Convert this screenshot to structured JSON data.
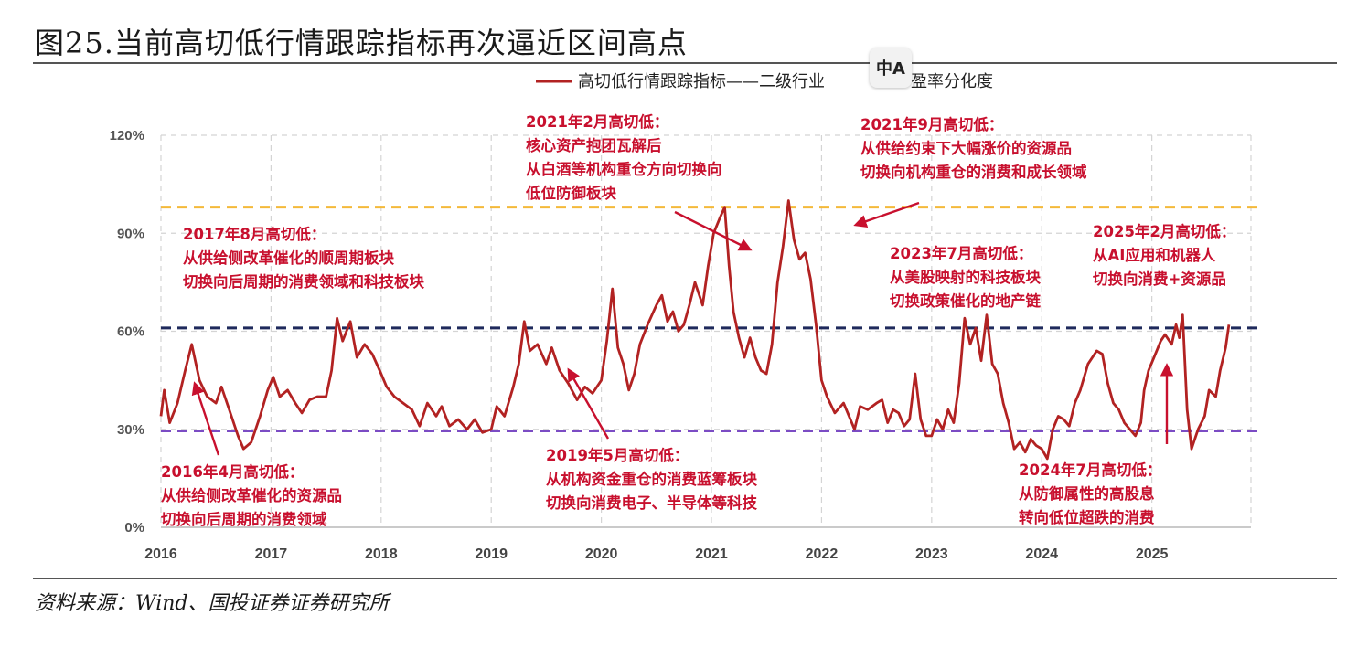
{
  "figure": {
    "title": "图25.当前高切低行情跟踪指标再次逼近区间高点",
    "source": "资料来源：Wind、国投证券证券研究所",
    "badge_icon": "translate-icon"
  },
  "colors": {
    "series": "#b22222",
    "annotation": "#c8102e",
    "upper_band": "#f4b93a",
    "middle_band": "#1f2a5c",
    "lower_band": "#7b4cc4",
    "grid": "#d4d4d4"
  },
  "chart_data": {
    "type": "line",
    "legend": "高切低行情跟踪指标——二级行业",
    "legend_tail": "盈率分化度",
    "ylim": [
      0,
      1.2
    ],
    "yticks": [
      "0%",
      "30%",
      "60%",
      "90%",
      "120%"
    ],
    "xticks": [
      "2016",
      "2017",
      "2018",
      "2019",
      "2020",
      "2021",
      "2022",
      "2023",
      "2024",
      "2025"
    ],
    "grid": true,
    "reference_lines": [
      {
        "value": 0.98,
        "style": "dashed",
        "color": "upper"
      },
      {
        "value": 0.61,
        "style": "dashed",
        "color": "middle"
      },
      {
        "value": 0.295,
        "style": "dashed",
        "color": "lower"
      }
    ],
    "series": [
      {
        "points": [
          [
            2016.0,
            0.34
          ],
          [
            2016.03,
            0.42
          ],
          [
            2016.08,
            0.32
          ],
          [
            2016.15,
            0.38
          ],
          [
            2016.22,
            0.48
          ],
          [
            2016.28,
            0.56
          ],
          [
            2016.35,
            0.45
          ],
          [
            2016.42,
            0.4
          ],
          [
            2016.5,
            0.38
          ],
          [
            2016.55,
            0.43
          ],
          [
            2016.62,
            0.36
          ],
          [
            2016.7,
            0.28
          ],
          [
            2016.75,
            0.24
          ],
          [
            2016.82,
            0.26
          ],
          [
            2016.9,
            0.34
          ],
          [
            2016.97,
            0.42
          ],
          [
            2017.02,
            0.46
          ],
          [
            2017.08,
            0.4
          ],
          [
            2017.15,
            0.42
          ],
          [
            2017.22,
            0.38
          ],
          [
            2017.28,
            0.35
          ],
          [
            2017.35,
            0.39
          ],
          [
            2017.42,
            0.4
          ],
          [
            2017.5,
            0.4
          ],
          [
            2017.55,
            0.48
          ],
          [
            2017.6,
            0.64
          ],
          [
            2017.65,
            0.57
          ],
          [
            2017.72,
            0.63
          ],
          [
            2017.78,
            0.52
          ],
          [
            2017.85,
            0.56
          ],
          [
            2017.92,
            0.53
          ],
          [
            2018.0,
            0.47
          ],
          [
            2018.05,
            0.43
          ],
          [
            2018.12,
            0.4
          ],
          [
            2018.2,
            0.38
          ],
          [
            2018.28,
            0.36
          ],
          [
            2018.35,
            0.31
          ],
          [
            2018.42,
            0.38
          ],
          [
            2018.5,
            0.34
          ],
          [
            2018.55,
            0.37
          ],
          [
            2018.62,
            0.31
          ],
          [
            2018.7,
            0.33
          ],
          [
            2018.78,
            0.3
          ],
          [
            2018.85,
            0.33
          ],
          [
            2018.92,
            0.29
          ],
          [
            2019.0,
            0.3
          ],
          [
            2019.05,
            0.37
          ],
          [
            2019.12,
            0.34
          ],
          [
            2019.2,
            0.43
          ],
          [
            2019.25,
            0.5
          ],
          [
            2019.3,
            0.63
          ],
          [
            2019.35,
            0.54
          ],
          [
            2019.42,
            0.56
          ],
          [
            2019.5,
            0.5
          ],
          [
            2019.55,
            0.55
          ],
          [
            2019.62,
            0.48
          ],
          [
            2019.7,
            0.44
          ],
          [
            2019.78,
            0.39
          ],
          [
            2019.85,
            0.43
          ],
          [
            2019.92,
            0.41
          ],
          [
            2020.0,
            0.45
          ],
          [
            2020.05,
            0.57
          ],
          [
            2020.1,
            0.73
          ],
          [
            2020.15,
            0.55
          ],
          [
            2020.2,
            0.5
          ],
          [
            2020.25,
            0.42
          ],
          [
            2020.3,
            0.47
          ],
          [
            2020.35,
            0.56
          ],
          [
            2020.42,
            0.62
          ],
          [
            2020.5,
            0.68
          ],
          [
            2020.55,
            0.71
          ],
          [
            2020.6,
            0.63
          ],
          [
            2020.65,
            0.66
          ],
          [
            2020.7,
            0.6
          ],
          [
            2020.75,
            0.62
          ],
          [
            2020.8,
            0.68
          ],
          [
            2020.85,
            0.75
          ],
          [
            2020.92,
            0.68
          ],
          [
            2020.97,
            0.8
          ],
          [
            2021.02,
            0.9
          ],
          [
            2021.08,
            0.95
          ],
          [
            2021.12,
            0.98
          ],
          [
            2021.16,
            0.8
          ],
          [
            2021.2,
            0.66
          ],
          [
            2021.25,
            0.58
          ],
          [
            2021.3,
            0.52
          ],
          [
            2021.35,
            0.58
          ],
          [
            2021.4,
            0.52
          ],
          [
            2021.45,
            0.48
          ],
          [
            2021.5,
            0.47
          ],
          [
            2021.55,
            0.56
          ],
          [
            2021.6,
            0.75
          ],
          [
            2021.65,
            0.86
          ],
          [
            2021.7,
            1.0
          ],
          [
            2021.75,
            0.88
          ],
          [
            2021.8,
            0.82
          ],
          [
            2021.85,
            0.84
          ],
          [
            2021.9,
            0.76
          ],
          [
            2021.95,
            0.62
          ],
          [
            2022.0,
            0.45
          ],
          [
            2022.05,
            0.4
          ],
          [
            2022.12,
            0.35
          ],
          [
            2022.2,
            0.38
          ],
          [
            2022.25,
            0.34
          ],
          [
            2022.3,
            0.3
          ],
          [
            2022.35,
            0.37
          ],
          [
            2022.42,
            0.36
          ],
          [
            2022.5,
            0.38
          ],
          [
            2022.55,
            0.39
          ],
          [
            2022.6,
            0.32
          ],
          [
            2022.65,
            0.36
          ],
          [
            2022.7,
            0.35
          ],
          [
            2022.75,
            0.31
          ],
          [
            2022.8,
            0.33
          ],
          [
            2022.85,
            0.47
          ],
          [
            2022.9,
            0.33
          ],
          [
            2022.95,
            0.28
          ],
          [
            2023.0,
            0.28
          ],
          [
            2023.05,
            0.33
          ],
          [
            2023.1,
            0.3
          ],
          [
            2023.15,
            0.36
          ],
          [
            2023.2,
            0.32
          ],
          [
            2023.25,
            0.44
          ],
          [
            2023.3,
            0.64
          ],
          [
            2023.35,
            0.56
          ],
          [
            2023.4,
            0.61
          ],
          [
            2023.45,
            0.51
          ],
          [
            2023.5,
            0.65
          ],
          [
            2023.55,
            0.5
          ],
          [
            2023.6,
            0.47
          ],
          [
            2023.65,
            0.38
          ],
          [
            2023.7,
            0.32
          ],
          [
            2023.75,
            0.24
          ],
          [
            2023.8,
            0.26
          ],
          [
            2023.85,
            0.23
          ],
          [
            2023.9,
            0.27
          ],
          [
            2023.95,
            0.25
          ],
          [
            2024.0,
            0.24
          ],
          [
            2024.05,
            0.21
          ],
          [
            2024.1,
            0.3
          ],
          [
            2024.15,
            0.34
          ],
          [
            2024.2,
            0.33
          ],
          [
            2024.25,
            0.31
          ],
          [
            2024.3,
            0.38
          ],
          [
            2024.35,
            0.42
          ],
          [
            2024.42,
            0.5
          ],
          [
            2024.5,
            0.54
          ],
          [
            2024.55,
            0.53
          ],
          [
            2024.6,
            0.44
          ],
          [
            2024.65,
            0.38
          ],
          [
            2024.7,
            0.36
          ],
          [
            2024.75,
            0.32
          ],
          [
            2024.8,
            0.3
          ],
          [
            2024.85,
            0.28
          ],
          [
            2024.9,
            0.32
          ],
          [
            2024.93,
            0.42
          ],
          [
            2024.97,
            0.48
          ],
          [
            2025.02,
            0.52
          ],
          [
            2025.08,
            0.57
          ],
          [
            2025.12,
            0.59
          ],
          [
            2025.18,
            0.56
          ],
          [
            2025.22,
            0.62
          ],
          [
            2025.25,
            0.58
          ],
          [
            2025.28,
            0.65
          ],
          [
            2025.32,
            0.36
          ],
          [
            2025.36,
            0.24
          ],
          [
            2025.42,
            0.3
          ],
          [
            2025.48,
            0.34
          ],
          [
            2025.52,
            0.42
          ],
          [
            2025.58,
            0.4
          ],
          [
            2025.62,
            0.48
          ],
          [
            2025.67,
            0.55
          ],
          [
            2025.7,
            0.62
          ]
        ]
      }
    ],
    "annotations": [
      {
        "id": "a2016",
        "lines": [
          "2016年4月高切低：",
          "从供给侧改革催化的资源品",
          "切换向后周期的消费领域"
        ]
      },
      {
        "id": "a2017",
        "lines": [
          "2017年8月高切低：",
          "从供给侧改革催化的顺周期板块",
          "切换向后周期的消费领域和科技板块"
        ]
      },
      {
        "id": "a2019",
        "lines": [
          "2019年5月高切低：",
          "从机构资金重仓的消费蓝筹板块",
          "切换向消费电子、半导体等科技"
        ]
      },
      {
        "id": "a2021f",
        "lines": [
          "2021年2月高切低：",
          "核心资产抱团瓦解后",
          "从白酒等机构重仓方向切换向",
          "低位防御板块"
        ]
      },
      {
        "id": "a2021s",
        "lines": [
          "2021年9月高切低：",
          "从供给约束下大幅涨价的资源品",
          "切换向机构重仓的消费和成长领域"
        ]
      },
      {
        "id": "a2023",
        "lines": [
          "2023年7月高切低：",
          "从美股映射的科技板块",
          "切换政策催化的地产链"
        ]
      },
      {
        "id": "a2024",
        "lines": [
          "2024年7月高切低：",
          "从防御属性的高股息",
          "转向低位超跌的消费"
        ]
      },
      {
        "id": "a2025",
        "lines": [
          "2025年2月高切低：",
          "从AI应用和机器人",
          "切换向消费+资源品"
        ]
      }
    ]
  }
}
